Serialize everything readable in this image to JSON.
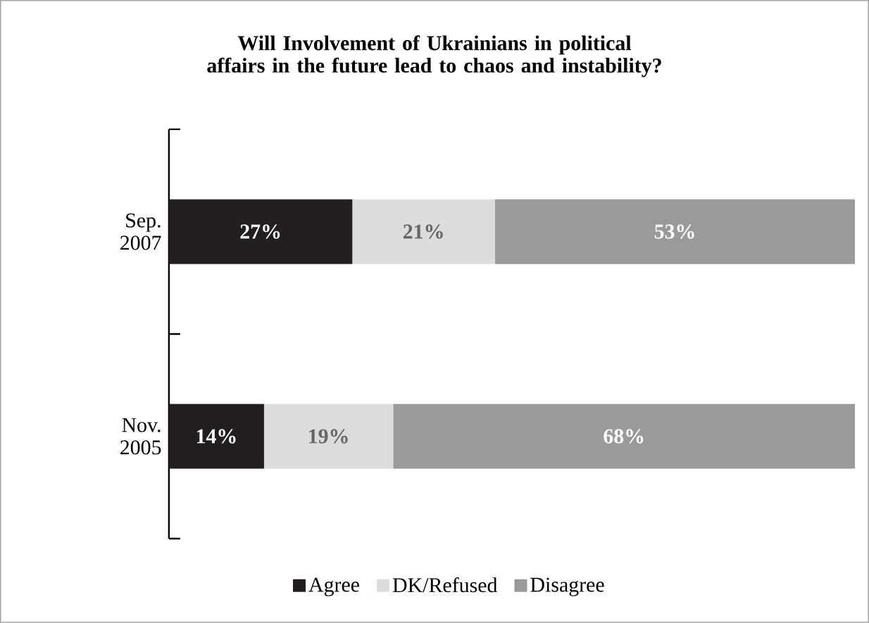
{
  "chart_data": {
    "type": "bar",
    "orientation": "horizontal",
    "stacked": true,
    "title": "Will Involvement of Ukrainians in political affairs in the future lead to chaos and instability?",
    "categories": [
      "Sep. 2007",
      "Nov. 2005"
    ],
    "series": [
      {
        "name": "Agree",
        "color": "#231f20",
        "values": [
          27,
          14
        ],
        "value_labels": [
          "27%",
          "14%"
        ]
      },
      {
        "name": "DK/Refused",
        "color": "#dcdcdc",
        "values": [
          21,
          19
        ],
        "value_labels": [
          "21%",
          "19%"
        ]
      },
      {
        "name": "Disagree",
        "color": "#9a9a9a",
        "values": [
          53,
          68
        ],
        "value_labels": [
          "53%",
          "68%"
        ]
      }
    ],
    "legend": "bottom"
  }
}
